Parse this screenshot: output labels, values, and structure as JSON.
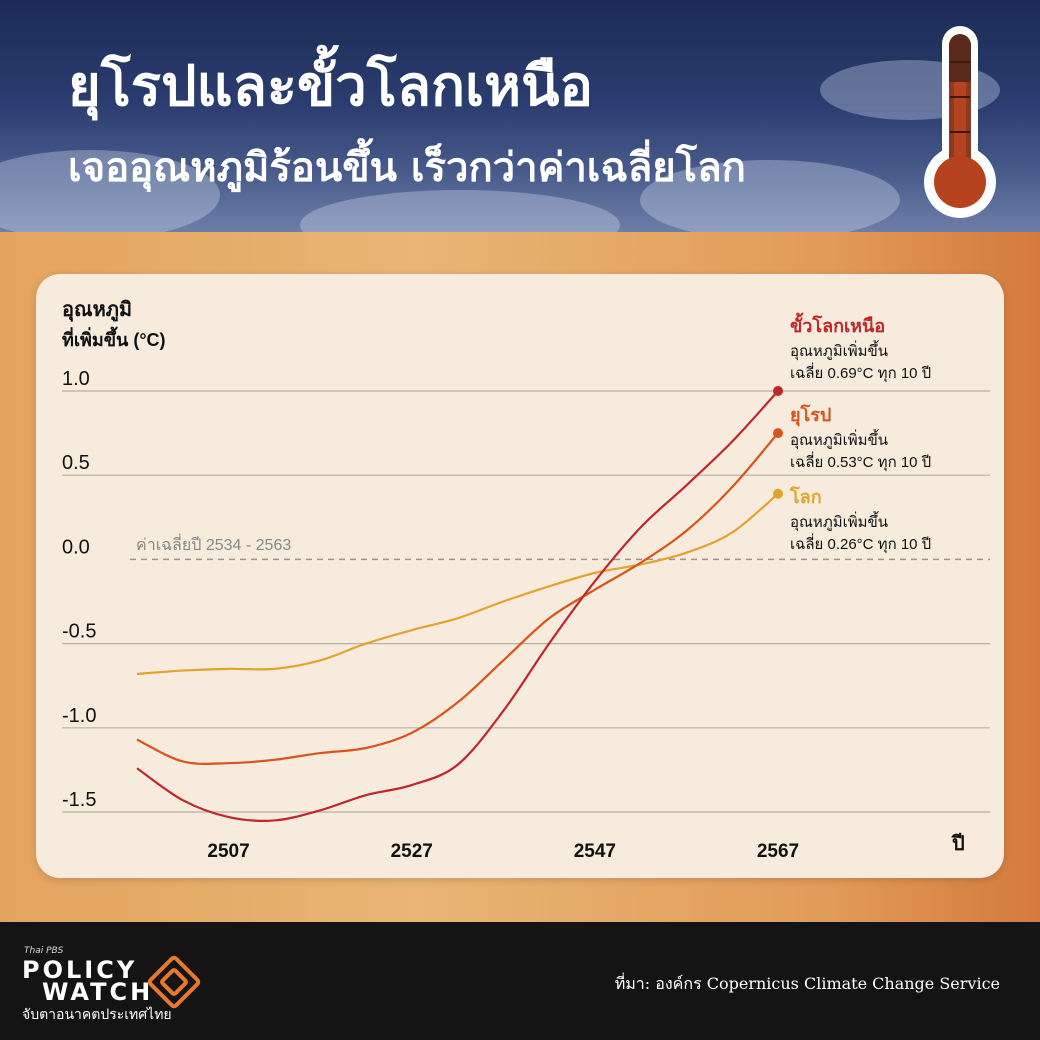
{
  "header": {
    "title_line1": "ยุโรปและขั้วโลกเหนือ",
    "title_line2": "เจออุณหภูมิร้อนขึ้น เร็วกว่าค่าเฉลี่ยโลก"
  },
  "colors": {
    "arctic": "#c0262a",
    "europe": "#d9541b",
    "global": "#e0a52a",
    "card": "#f6ebdd",
    "grid": "#b7b0a6"
  },
  "chart_data": {
    "type": "line",
    "ylabel_line1": "อุณหภูมิ",
    "ylabel_line2": "ที่เพิ่มขึ้น (°C)",
    "xlabel": "ปี",
    "ylim": [
      -1.5,
      1.0
    ],
    "yticks": [
      1.0,
      0.5,
      0.0,
      -0.5,
      -1.0,
      -1.5
    ],
    "ytick_labels": [
      "1.0",
      "0.5",
      "0.0",
      "-0.5",
      "-1.0",
      "-1.5"
    ],
    "xlim": [
      2497,
      2567
    ],
    "xticks": [
      2507,
      2527,
      2547,
      2567
    ],
    "xtick_labels": [
      "2507",
      "2527",
      "2547",
      "2567"
    ],
    "grid": true,
    "baseline_label": "ค่าเฉลี่ยปี 2534 - 2563",
    "series": [
      {
        "key": "global",
        "name": "โลก",
        "note_line1": "อุณหภูมิเพิ่มขึ้น",
        "note_line2": "เฉลี่ย 0.26°C ทุก 10 ปี",
        "x": [
          2497,
          2502,
          2507,
          2512,
          2517,
          2522,
          2527,
          2532,
          2537,
          2542,
          2547,
          2552,
          2557,
          2562,
          2567
        ],
        "y": [
          -0.68,
          -0.66,
          -0.65,
          -0.65,
          -0.6,
          -0.5,
          -0.42,
          -0.35,
          -0.25,
          -0.16,
          -0.08,
          -0.03,
          0.04,
          0.16,
          0.39
        ]
      },
      {
        "key": "europe",
        "name": "ยุโรป",
        "note_line1": "อุณหภูมิเพิ่มขึ้น",
        "note_line2": "เฉลี่ย 0.53°C ทุก 10 ปี",
        "x": [
          2497,
          2502,
          2507,
          2512,
          2517,
          2522,
          2527,
          2532,
          2537,
          2542,
          2547,
          2552,
          2557,
          2562,
          2567
        ],
        "y": [
          -1.07,
          -1.2,
          -1.21,
          -1.19,
          -1.15,
          -1.12,
          -1.03,
          -0.85,
          -0.6,
          -0.35,
          -0.18,
          -0.02,
          0.17,
          0.43,
          0.75
        ]
      },
      {
        "key": "arctic",
        "name": "ขั้วโลกเหนือ",
        "note_line1": "อุณหภูมิเพิ่มขึ้น",
        "note_line2": "เฉลี่ย 0.69°C ทุก 10 ปี",
        "x": [
          2497,
          2502,
          2507,
          2512,
          2517,
          2522,
          2527,
          2532,
          2537,
          2542,
          2547,
          2552,
          2557,
          2562,
          2567
        ],
        "y": [
          -1.24,
          -1.43,
          -1.53,
          -1.55,
          -1.49,
          -1.4,
          -1.34,
          -1.22,
          -0.9,
          -0.5,
          -0.13,
          0.19,
          0.44,
          0.7,
          1.0
        ]
      }
    ]
  },
  "footer": {
    "brand_small": "Thai PBS",
    "brand_line1": "POLICY",
    "brand_line2": "WATCH",
    "tagline": "จับตาอนาคตประเทศไทย",
    "source": "ที่มา: องค์กร Copernicus Climate Change Service"
  }
}
